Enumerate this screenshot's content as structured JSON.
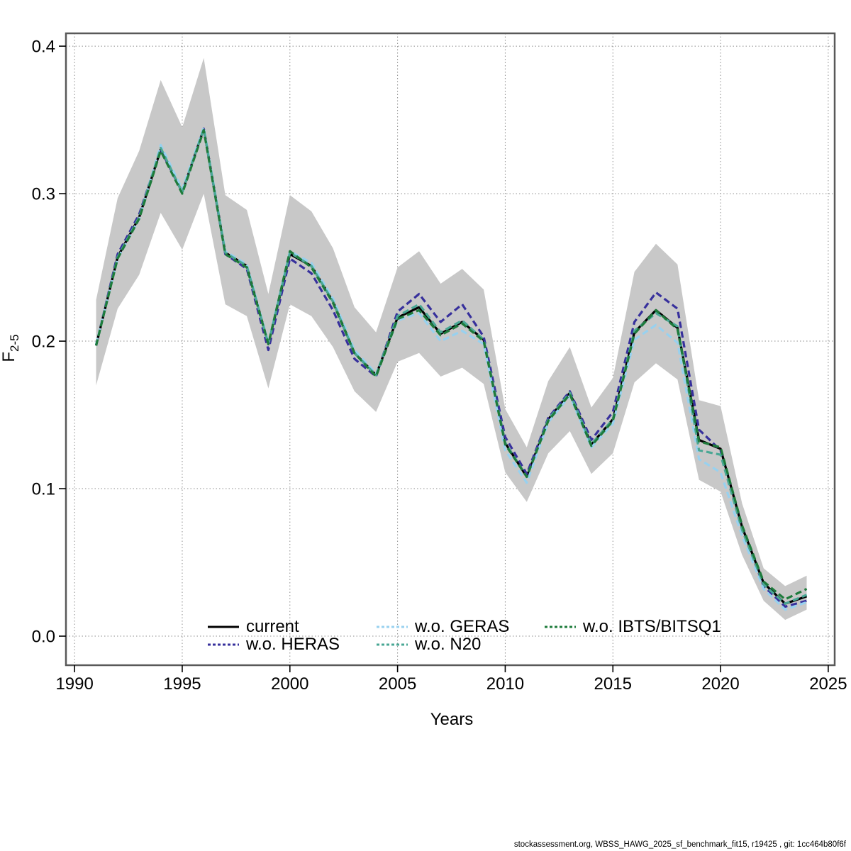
{
  "page": {
    "footer": "stockassessment.org, WBSS_HAWG_2025_sf_benchmark_fit15, r19425 , git: 1cc464b80f6f"
  },
  "chart_data": {
    "type": "line",
    "title": "",
    "xlabel": "Years",
    "ylabel": {
      "base": "F",
      "sub": "2-5"
    },
    "xlim": [
      1989.6,
      2025.3
    ],
    "ylim": [
      -0.0197,
      0.4087
    ],
    "grid": "dotted",
    "legend_position": "bottom-center",
    "xtick_values": [
      1990,
      1995,
      2000,
      2005,
      2010,
      2015,
      2020,
      2025
    ],
    "xtick_labels": [
      "1990",
      "1995",
      "2000",
      "2005",
      "2010",
      "2015",
      "2020",
      "2025"
    ],
    "ytick_values": [
      0.0,
      0.1,
      0.2,
      0.3,
      0.4
    ],
    "ytick_labels": [
      "0.0",
      "0.1",
      "0.2",
      "0.3",
      "0.4"
    ],
    "x": [
      1991,
      1992,
      1993,
      1994,
      1995,
      1996,
      1997,
      1998,
      1999,
      2000,
      2001,
      2002,
      2003,
      2004,
      2005,
      2006,
      2007,
      2008,
      2009,
      2010,
      2011,
      2012,
      2013,
      2014,
      2015,
      2016,
      2017,
      2018,
      2019,
      2020,
      2021,
      2022,
      2023,
      2024
    ],
    "band": {
      "name": "current confidence interval",
      "color": "#c8c8c8",
      "lower": [
        0.17,
        0.222,
        0.245,
        0.287,
        0.262,
        0.3,
        0.225,
        0.217,
        0.168,
        0.225,
        0.217,
        0.196,
        0.166,
        0.152,
        0.186,
        0.192,
        0.176,
        0.182,
        0.171,
        0.111,
        0.091,
        0.124,
        0.139,
        0.11,
        0.124,
        0.172,
        0.185,
        0.174,
        0.106,
        0.098,
        0.055,
        0.024,
        0.011,
        0.018
      ],
      "upper": [
        0.228,
        0.297,
        0.329,
        0.377,
        0.345,
        0.392,
        0.299,
        0.289,
        0.232,
        0.299,
        0.288,
        0.263,
        0.223,
        0.206,
        0.25,
        0.261,
        0.239,
        0.249,
        0.235,
        0.154,
        0.128,
        0.173,
        0.196,
        0.155,
        0.175,
        0.247,
        0.266,
        0.252,
        0.16,
        0.156,
        0.09,
        0.046,
        0.034,
        0.041
      ]
    },
    "series": [
      {
        "name": "current",
        "color": "#000000",
        "style": "solid",
        "legend_row": 0,
        "legend_col": 0,
        "values": [
          0.197,
          0.257,
          0.284,
          0.33,
          0.301,
          0.344,
          0.26,
          0.251,
          0.198,
          0.259,
          0.251,
          0.227,
          0.192,
          0.177,
          0.216,
          0.223,
          0.205,
          0.213,
          0.201,
          0.131,
          0.108,
          0.147,
          0.165,
          0.13,
          0.147,
          0.206,
          0.221,
          0.209,
          0.133,
          0.127,
          0.074,
          0.036,
          0.022,
          0.027
        ]
      },
      {
        "name": "w.o. HERAS",
        "color": "#37309c",
        "style": "dashed",
        "legend_row": 1,
        "legend_col": 0,
        "values": [
          0.197,
          0.259,
          0.286,
          0.33,
          0.301,
          0.344,
          0.259,
          0.249,
          0.194,
          0.256,
          0.246,
          0.221,
          0.188,
          0.176,
          0.22,
          0.232,
          0.213,
          0.225,
          0.203,
          0.135,
          0.11,
          0.148,
          0.166,
          0.133,
          0.152,
          0.213,
          0.233,
          0.222,
          0.14,
          0.126,
          0.073,
          0.034,
          0.02,
          0.024
        ]
      },
      {
        "name": "w.o. GERAS",
        "color": "#98d1ef",
        "style": "dashed",
        "legend_row": 0,
        "legend_col": 1,
        "values": [
          0.198,
          0.256,
          0.283,
          0.333,
          0.303,
          0.345,
          0.261,
          0.252,
          0.199,
          0.261,
          0.253,
          0.229,
          0.194,
          0.178,
          0.214,
          0.219,
          0.2,
          0.207,
          0.198,
          0.126,
          0.104,
          0.145,
          0.163,
          0.128,
          0.144,
          0.201,
          0.211,
          0.199,
          0.12,
          0.111,
          0.068,
          0.032,
          0.018,
          0.023
        ]
      },
      {
        "name": "w.o. N20",
        "color": "#49a794",
        "style": "dashed",
        "legend_row": 1,
        "legend_col": 1,
        "values": [
          0.197,
          0.257,
          0.284,
          0.331,
          0.301,
          0.344,
          0.26,
          0.251,
          0.198,
          0.26,
          0.251,
          0.227,
          0.192,
          0.177,
          0.217,
          0.225,
          0.206,
          0.214,
          0.201,
          0.131,
          0.108,
          0.147,
          0.165,
          0.13,
          0.147,
          0.207,
          0.219,
          0.21,
          0.126,
          0.123,
          0.072,
          0.035,
          0.022,
          0.028
        ]
      },
      {
        "name": "w.o. IBTS/BITSQ1",
        "color": "#1e7b3b",
        "style": "dashed",
        "legend_row": 0,
        "legend_col": 2,
        "values": [
          0.197,
          0.256,
          0.283,
          0.329,
          0.3,
          0.343,
          0.259,
          0.25,
          0.198,
          0.261,
          0.25,
          0.226,
          0.192,
          0.176,
          0.215,
          0.221,
          0.204,
          0.212,
          0.2,
          0.13,
          0.108,
          0.146,
          0.164,
          0.129,
          0.146,
          0.205,
          0.221,
          0.208,
          0.132,
          0.128,
          0.075,
          0.037,
          0.025,
          0.032
        ]
      }
    ]
  }
}
